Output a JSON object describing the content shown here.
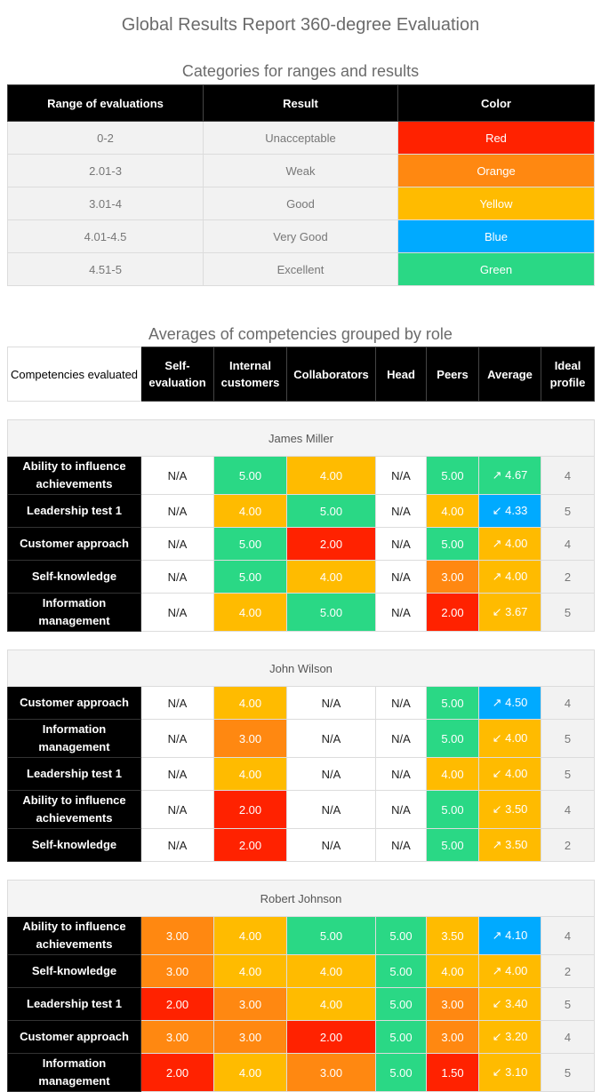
{
  "page_title": "Global Results Report 360-degree Evaluation",
  "colors": {
    "red": "#ff2200",
    "orange": "#ff8811",
    "yellow": "#ffbb00",
    "blue": "#00aaff",
    "green": "#2ad885"
  },
  "ranges_table": {
    "title": "Categories for ranges and results",
    "headers": [
      "Range of evaluations",
      "Result",
      "Color"
    ],
    "rows": [
      {
        "range": "0-2",
        "result": "Unacceptable",
        "color": "Red",
        "hex": "#ff2200"
      },
      {
        "range": "2.01-3",
        "result": "Weak",
        "color": "Orange",
        "hex": "#ff8811"
      },
      {
        "range": "3.01-4",
        "result": "Good",
        "color": "Yellow",
        "hex": "#ffbb00"
      },
      {
        "range": "4.01-4.5",
        "result": "Very Good",
        "color": "Blue",
        "hex": "#00aaff"
      },
      {
        "range": "4.51-5",
        "result": "Excellent",
        "color": "Green",
        "hex": "#2ad885"
      }
    ]
  },
  "averages_table": {
    "title": "Averages of competencies grouped by role",
    "headers": [
      "Competencies evaluated",
      "Self-evaluation",
      "Internal customers",
      "Collaborators",
      "Head",
      "Peers",
      "Average",
      "Ideal profile"
    ],
    "groups": [
      {
        "name": "James Miller",
        "rows": [
          {
            "competency": "Ability to influence achievements",
            "self": "N/A",
            "internal": "5.00",
            "collab": "4.00",
            "head": "N/A",
            "peers": "5.00",
            "average": "↗ 4.67",
            "ideal": "4"
          },
          {
            "competency": "Leadership test 1",
            "self": "N/A",
            "internal": "4.00",
            "collab": "5.00",
            "head": "N/A",
            "peers": "4.00",
            "average": "↙ 4.33",
            "ideal": "5"
          },
          {
            "competency": "Customer approach",
            "self": "N/A",
            "internal": "5.00",
            "collab": "2.00",
            "head": "N/A",
            "peers": "5.00",
            "average": "↗ 4.00",
            "ideal": "4"
          },
          {
            "competency": "Self-knowledge",
            "self": "N/A",
            "internal": "5.00",
            "collab": "4.00",
            "head": "N/A",
            "peers": "3.00",
            "average": "↗ 4.00",
            "ideal": "2"
          },
          {
            "competency": "Information management",
            "self": "N/A",
            "internal": "4.00",
            "collab": "5.00",
            "head": "N/A",
            "peers": "2.00",
            "average": "↙ 3.67",
            "ideal": "5"
          }
        ]
      },
      {
        "name": "John Wilson",
        "rows": [
          {
            "competency": "Customer approach",
            "self": "N/A",
            "internal": "4.00",
            "collab": "N/A",
            "head": "N/A",
            "peers": "5.00",
            "average": "↗ 4.50",
            "ideal": "4"
          },
          {
            "competency": "Information management",
            "self": "N/A",
            "internal": "3.00",
            "collab": "N/A",
            "head": "N/A",
            "peers": "5.00",
            "average": "↙ 4.00",
            "ideal": "5"
          },
          {
            "competency": "Leadership test 1",
            "self": "N/A",
            "internal": "4.00",
            "collab": "N/A",
            "head": "N/A",
            "peers": "4.00",
            "average": "↙ 4.00",
            "ideal": "5"
          },
          {
            "competency": "Ability to influence achievements",
            "self": "N/A",
            "internal": "2.00",
            "collab": "N/A",
            "head": "N/A",
            "peers": "5.00",
            "average": "↙ 3.50",
            "ideal": "4"
          },
          {
            "competency": "Self-knowledge",
            "self": "N/A",
            "internal": "2.00",
            "collab": "N/A",
            "head": "N/A",
            "peers": "5.00",
            "average": "↗ 3.50",
            "ideal": "2"
          }
        ]
      },
      {
        "name": "Robert Johnson",
        "rows": [
          {
            "competency": "Ability to influence achievements",
            "self": "3.00",
            "internal": "4.00",
            "collab": "5.00",
            "head": "5.00",
            "peers": "3.50",
            "average": "↗ 4.10",
            "ideal": "4"
          },
          {
            "competency": "Self-knowledge",
            "self": "3.00",
            "internal": "4.00",
            "collab": "4.00",
            "head": "5.00",
            "peers": "4.00",
            "average": "↗ 4.00",
            "ideal": "2"
          },
          {
            "competency": "Leadership test 1",
            "self": "2.00",
            "internal": "3.00",
            "collab": "4.00",
            "head": "5.00",
            "peers": "3.00",
            "average": "↙ 3.40",
            "ideal": "5"
          },
          {
            "competency": "Customer approach",
            "self": "3.00",
            "internal": "3.00",
            "collab": "2.00",
            "head": "5.00",
            "peers": "3.00",
            "average": "↙ 3.20",
            "ideal": "4"
          },
          {
            "competency": "Information management",
            "self": "2.00",
            "internal": "4.00",
            "collab": "3.00",
            "head": "5.00",
            "peers": "1.50",
            "average": "↙ 3.10",
            "ideal": "5"
          }
        ]
      }
    ]
  }
}
